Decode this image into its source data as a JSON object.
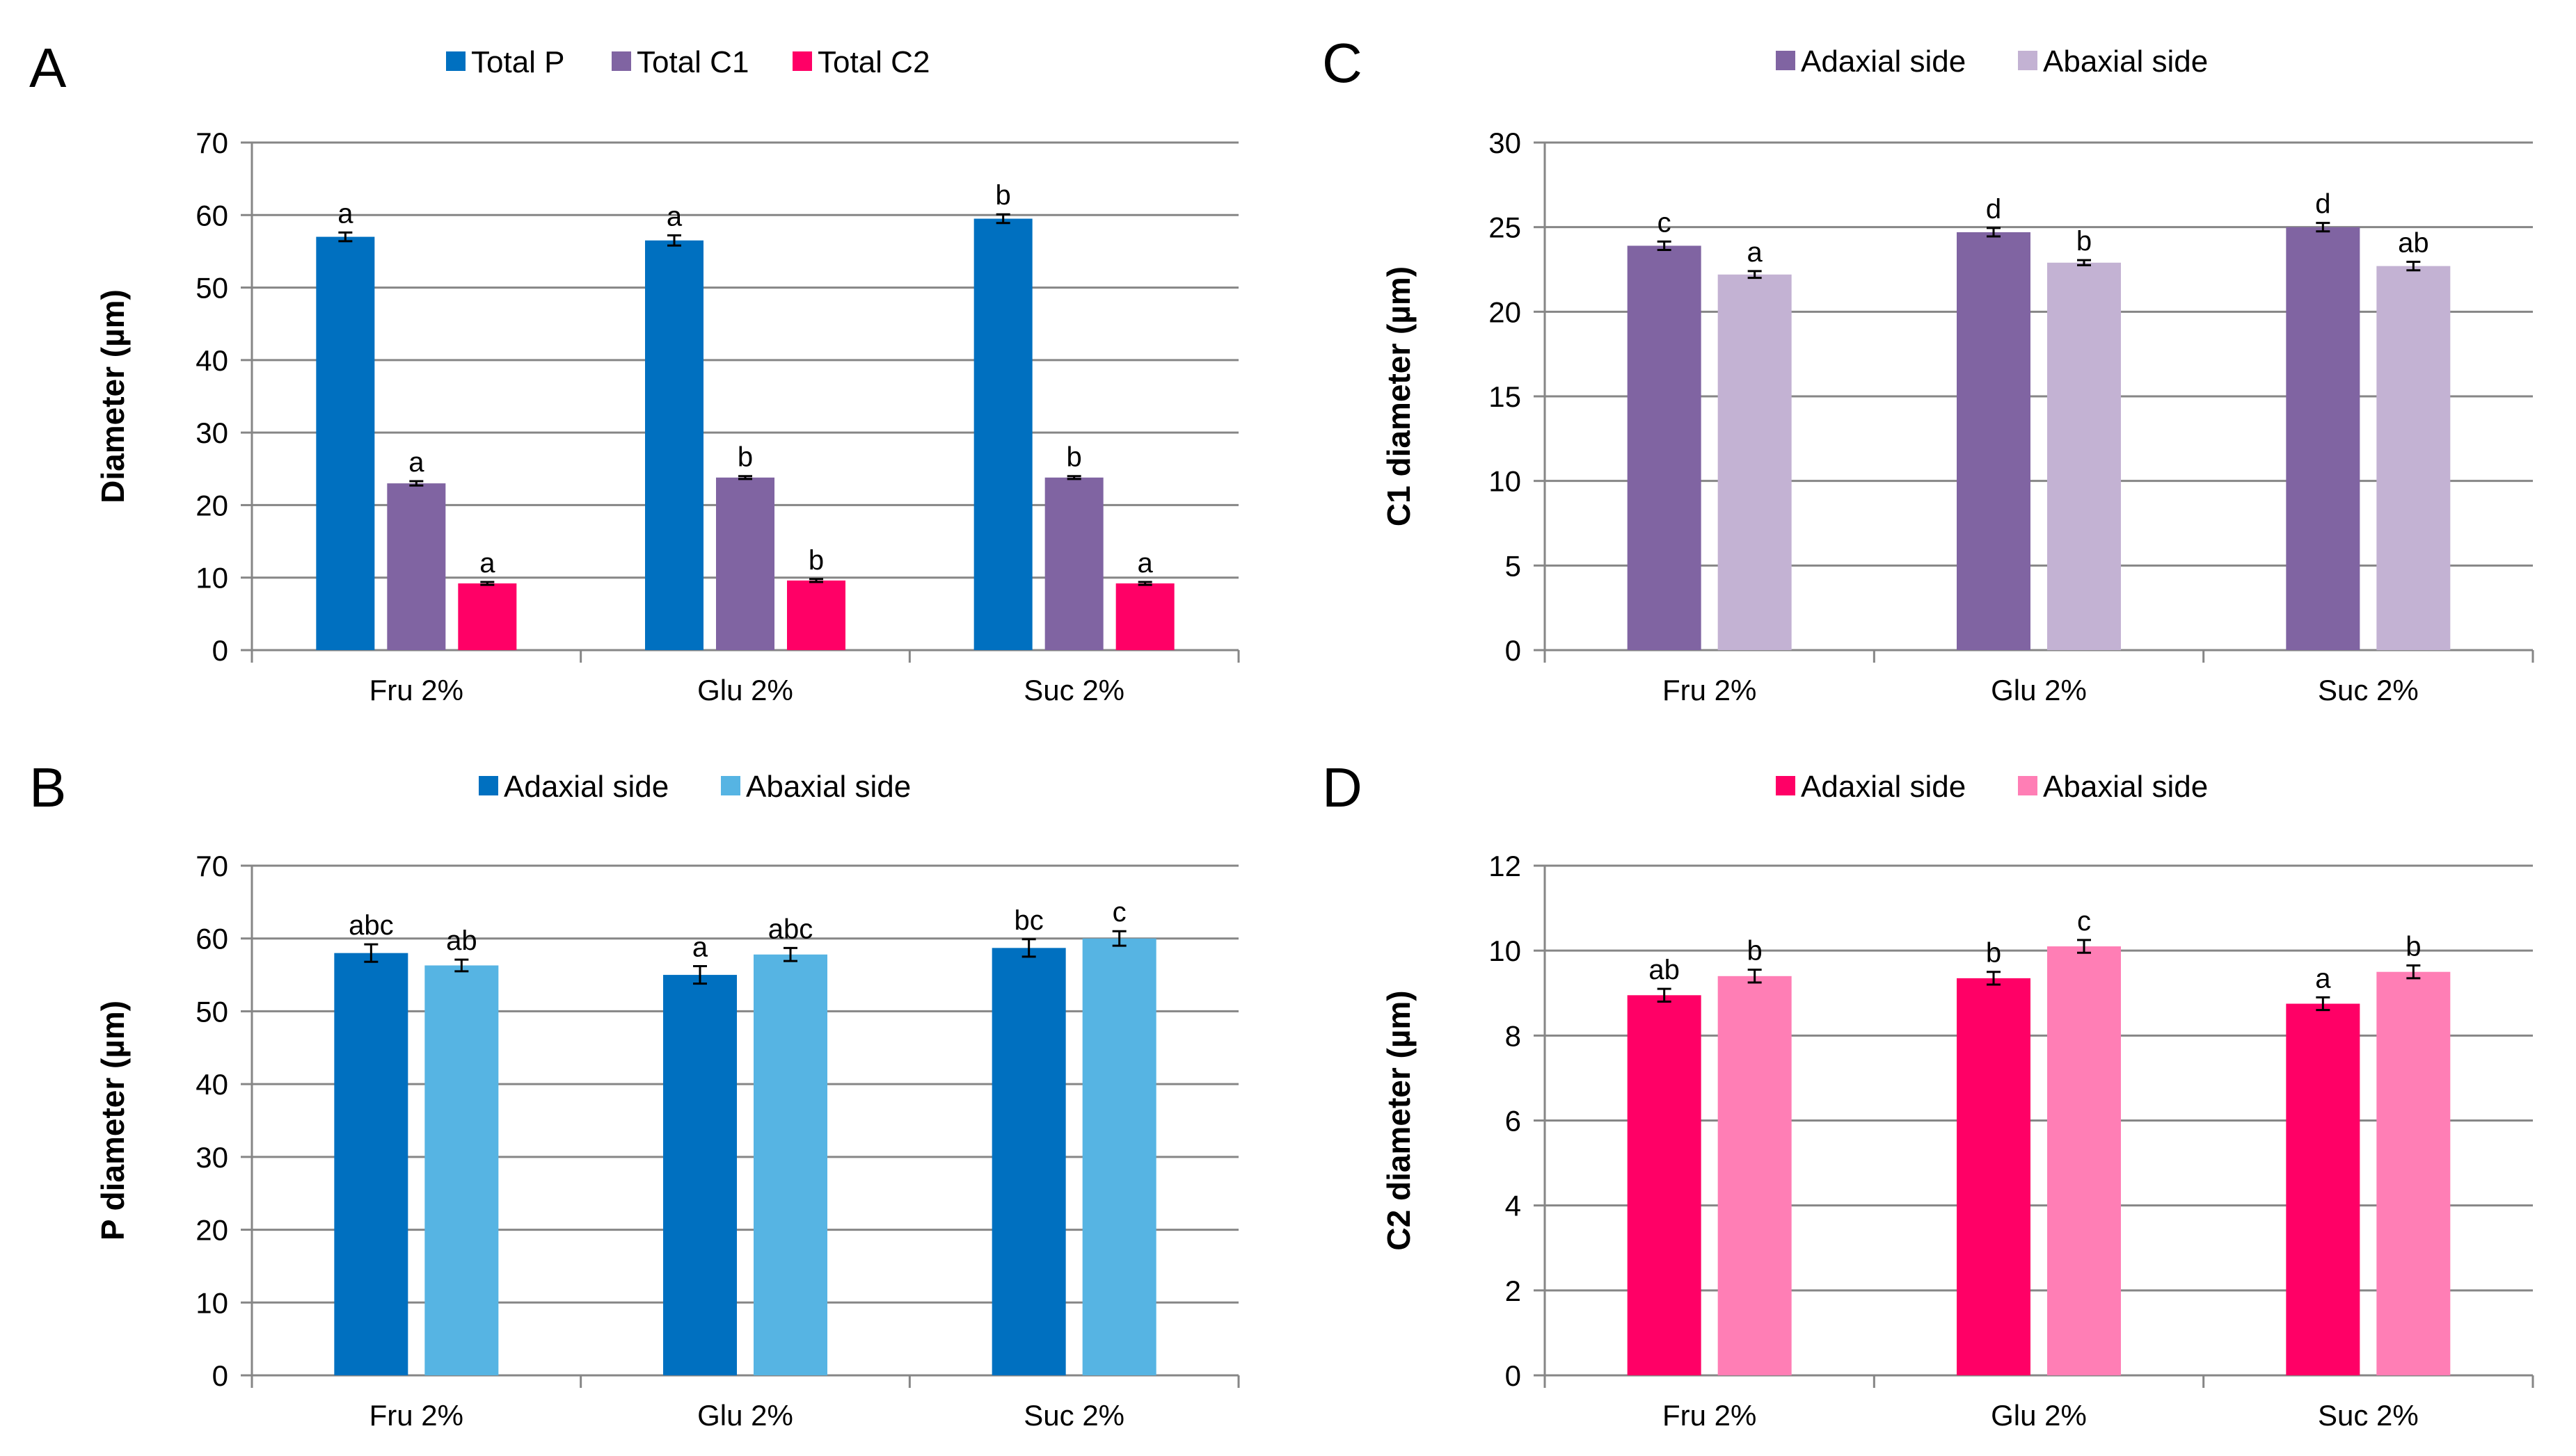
{
  "chart_data": [
    {
      "panel": "A",
      "type": "bar",
      "ylabel": "Diameter (µm)",
      "ylim": [
        0,
        70
      ],
      "yticks": [
        0,
        10,
        20,
        30,
        40,
        50,
        60,
        70
      ],
      "categories": [
        "Fru 2%",
        "Glu 2%",
        "Suc 2%"
      ],
      "series": [
        {
          "name": "Total P",
          "color": "#0070C0",
          "values": [
            57.0,
            56.5,
            59.5
          ],
          "errors": [
            0.6,
            0.7,
            0.6
          ],
          "labels": [
            "a",
            "a",
            "b"
          ]
        },
        {
          "name": "Total C1",
          "color": "#8064A2",
          "values": [
            23.0,
            23.8,
            23.8
          ],
          "errors": [
            0.3,
            0.2,
            0.2
          ],
          "labels": [
            "a",
            "b",
            "b"
          ]
        },
        {
          "name": "Total C2",
          "color": "#FF0066",
          "values": [
            9.2,
            9.6,
            9.2
          ],
          "errors": [
            0.2,
            0.2,
            0.2
          ],
          "labels": [
            "a",
            "b",
            "a"
          ]
        }
      ],
      "legend_position": "top-center",
      "grid": true
    },
    {
      "panel": "B",
      "type": "bar",
      "ylabel": "P diameter (µm)",
      "ylim": [
        0,
        70
      ],
      "yticks": [
        0,
        10,
        20,
        30,
        40,
        50,
        60,
        70
      ],
      "categories": [
        "Fru 2%",
        "Glu 2%",
        "Suc 2%"
      ],
      "series": [
        {
          "name": "Adaxial side",
          "color": "#0070C0",
          "values": [
            58.0,
            55.0,
            58.7
          ],
          "errors": [
            1.2,
            1.2,
            1.2
          ],
          "labels": [
            "abc",
            "a",
            "bc"
          ]
        },
        {
          "name": "Abaxial side",
          "color": "#56B4E3",
          "values": [
            56.3,
            57.8,
            60.0
          ],
          "errors": [
            0.8,
            0.9,
            1.0
          ],
          "labels": [
            "ab",
            "abc",
            "c"
          ]
        }
      ],
      "legend_position": "top-center",
      "grid": true
    },
    {
      "panel": "C",
      "type": "bar",
      "ylabel": "C1 diameter (µm)",
      "ylim": [
        0,
        30
      ],
      "yticks": [
        0,
        5,
        10,
        15,
        20,
        25,
        30
      ],
      "categories": [
        "Fru 2%",
        "Glu 2%",
        "Suc 2%"
      ],
      "series": [
        {
          "name": "Adaxial side",
          "color": "#8064A2",
          "values": [
            23.9,
            24.7,
            25.0
          ],
          "errors": [
            0.25,
            0.25,
            0.25
          ],
          "labels": [
            "c",
            "d",
            "d"
          ]
        },
        {
          "name": "Abaxial side",
          "color": "#C3B2D3",
          "values": [
            22.2,
            22.9,
            22.7
          ],
          "errors": [
            0.2,
            0.15,
            0.25
          ],
          "labels": [
            "a",
            "b",
            "ab"
          ]
        }
      ],
      "legend_position": "top-center",
      "grid": true
    },
    {
      "panel": "D",
      "type": "bar",
      "ylabel": "C2 diameter (µm)",
      "ylim": [
        0,
        12
      ],
      "yticks": [
        0,
        2,
        4,
        6,
        8,
        10,
        12
      ],
      "categories": [
        "Fru 2%",
        "Glu 2%",
        "Suc 2%"
      ],
      "series": [
        {
          "name": "Adaxial side",
          "color": "#FF0066",
          "values": [
            8.95,
            9.35,
            8.75
          ],
          "errors": [
            0.15,
            0.15,
            0.15
          ],
          "labels": [
            "ab",
            "b",
            "a"
          ]
        },
        {
          "name": "Abaxial side",
          "color": "#FF7EB5",
          "values": [
            9.4,
            10.1,
            9.5
          ],
          "errors": [
            0.15,
            0.15,
            0.15
          ],
          "labels": [
            "b",
            "c",
            "b"
          ]
        }
      ],
      "legend_position": "top-center",
      "grid": true
    }
  ]
}
